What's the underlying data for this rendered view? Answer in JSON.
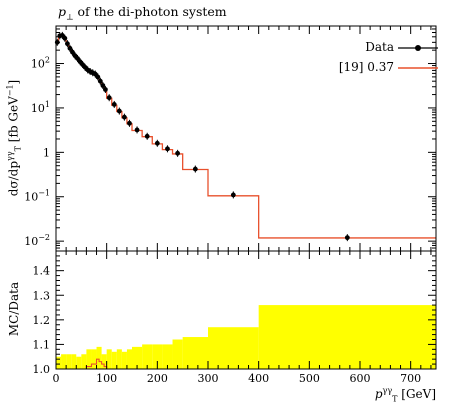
{
  "chart_data": [
    {
      "type": "line",
      "title": "p⊥ of the di-photon system",
      "ylabel": "dσ/dpT^γγ [fb GeV^-1]",
      "y_scale": "log",
      "ylim": [
        0.006,
        700
      ],
      "xlim": [
        0,
        750
      ],
      "y_ticks": [
        "10^-2",
        "10^-1",
        "1",
        "10^1",
        "10^2"
      ],
      "legend_position": "top-right",
      "series": [
        {
          "name": "Data",
          "style": "points with error bars",
          "color": "#000000",
          "x": [
            2.5,
            7.5,
            12.5,
            17.5,
            22.5,
            27.5,
            32.5,
            37.5,
            42.5,
            47.5,
            52.5,
            57.5,
            62.5,
            67.5,
            72.5,
            77.5,
            82.5,
            87.5,
            92.5,
            97.5,
            105,
            115,
            125,
            135,
            145,
            160,
            180,
            200,
            220,
            240,
            275,
            350,
            575
          ],
          "y": [
            300,
            420,
            430,
            370,
            280,
            220,
            180,
            150,
            130,
            110,
            95,
            82,
            72,
            66,
            62,
            58,
            50,
            40,
            32,
            26,
            17,
            12,
            8.5,
            6.2,
            4.5,
            3.2,
            2.3,
            1.6,
            1.2,
            0.95,
            0.42,
            0.11,
            0.012
          ]
        },
        {
          "name": "[19] 0.37",
          "style": "histogram",
          "color": "#e8502c",
          "bin_edges": [
            0,
            5,
            10,
            15,
            20,
            25,
            30,
            35,
            40,
            45,
            50,
            55,
            60,
            65,
            70,
            75,
            80,
            85,
            90,
            95,
            100,
            110,
            120,
            130,
            140,
            150,
            170,
            190,
            210,
            230,
            250,
            300,
            400,
            750
          ],
          "values": [
            290,
            410,
            420,
            360,
            275,
            215,
            178,
            148,
            128,
            108,
            94,
            81,
            71,
            65,
            61,
            57,
            49,
            39,
            31,
            25,
            16.5,
            11.5,
            8.3,
            6.0,
            4.4,
            3.1,
            2.25,
            1.55,
            1.15,
            0.92,
            0.41,
            0.105,
            0.0118
          ]
        }
      ]
    },
    {
      "type": "area",
      "ylabel": "MC/Data",
      "xlabel": "pT^γγ [GeV]",
      "ylim": [
        1.0,
        1.48
      ],
      "xlim": [
        0,
        750
      ],
      "y_ticks": [
        "1.0",
        "1.1",
        "1.2",
        "1.3",
        "1.4"
      ],
      "x_ticks": [
        "0",
        "100",
        "200",
        "300",
        "400",
        "500",
        "600",
        "700"
      ],
      "band": {
        "name": "Data uncertainty",
        "color": "#ffff00",
        "bin_edges": [
          0,
          10,
          20,
          30,
          40,
          50,
          60,
          70,
          80,
          90,
          100,
          110,
          120,
          130,
          140,
          150,
          170,
          190,
          210,
          230,
          250,
          300,
          400,
          750
        ],
        "upper": [
          1.05,
          1.06,
          1.06,
          1.06,
          1.05,
          1.06,
          1.08,
          1.08,
          1.09,
          1.06,
          1.08,
          1.07,
          1.08,
          1.07,
          1.08,
          1.09,
          1.1,
          1.1,
          1.1,
          1.12,
          1.13,
          1.17,
          1.26
        ]
      },
      "series": [
        {
          "name": "[19] 0.37",
          "color": "#e8502c",
          "bin_edges": [
            0,
            10,
            20,
            30,
            40,
            50,
            60,
            70,
            80,
            85,
            90,
            95,
            100,
            110,
            130,
            750
          ],
          "values": [
            1.0,
            1.0,
            1.0,
            1.0,
            1.0,
            1.0,
            1.01,
            1.02,
            1.04,
            1.03,
            1.02,
            1.01,
            1.0,
            1.0,
            1.0
          ]
        }
      ]
    }
  ],
  "labels": {
    "title_var": "p",
    "title_sub": "⊥",
    "title_rest": " of the di-photon system",
    "legend_data": "Data",
    "legend_mc": "[19] 0.37",
    "ylabel_top": "dσ/dp",
    "ylabel_top_sup": "γγ",
    "ylabel_top_sub": "T",
    "ylabel_top_unit": "[fb GeV",
    "ylabel_top_unit_sup": "−1",
    "ylabel_top_close": "]",
    "ylabel_bot": "MC/Data",
    "xlabel_var": "p",
    "xlabel_sup": "γγ",
    "xlabel_sub": "T",
    "xlabel_unit": "[GeV]"
  }
}
